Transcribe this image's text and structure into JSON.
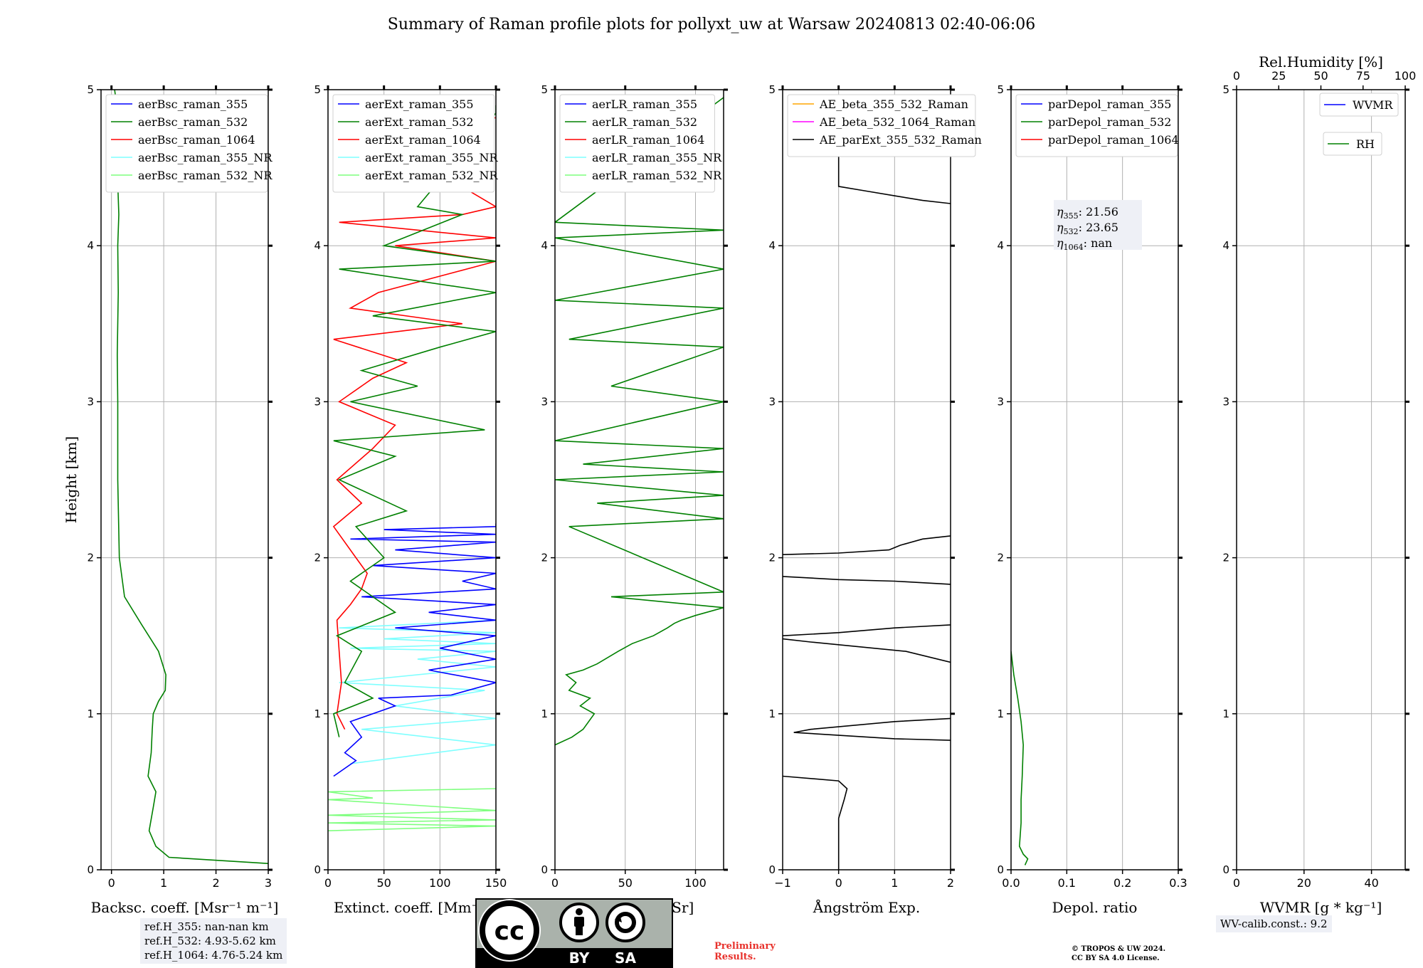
{
  "title": "Summary of Raman profile plots for pollyxt_uw at Warsaw 20240813 02:40-06:06",
  "colors": {
    "blue": "#0000ff",
    "green": "#008000",
    "red": "#ff0000",
    "cyan": "#7fffff",
    "lightgreen": "#7fff7f",
    "orange": "#ffa500",
    "magenta": "#ff00ff",
    "black": "#000000",
    "grid": "#b0b0b0",
    "info_bg": "#eef0f6",
    "preliminary": "#e8322c"
  },
  "chart_data": [
    {
      "id": "backscatter",
      "type": "line",
      "xlabel": "Backsc. coeff. [Msr⁻¹ m⁻¹]",
      "ylabel": "Height [km]",
      "xlim": [
        -0.2,
        3
      ],
      "ylim": [
        0,
        5
      ],
      "xticks": [
        "0",
        "1",
        "2",
        "3"
      ],
      "yticks": [
        "0",
        "1",
        "2",
        "3",
        "4",
        "5"
      ],
      "legend_position": "top-left",
      "legend": [
        {
          "name": "aerBsc_raman_355",
          "color": "blue"
        },
        {
          "name": "aerBsc_raman_532",
          "color": "green"
        },
        {
          "name": "aerBsc_raman_1064",
          "color": "red"
        },
        {
          "name": "aerBsc_raman_355_NR",
          "color": "cyan"
        },
        {
          "name": "aerBsc_raman_532_NR",
          "color": "lightgreen"
        }
      ],
      "series": [
        {
          "name": "aerBsc_raman_532",
          "color": "green",
          "x": [
            3.0,
            1.1,
            0.85,
            0.72,
            0.8,
            0.85,
            0.7,
            0.76,
            0.78,
            0.8,
            0.9,
            1.03,
            1.04,
            0.9,
            0.58,
            0.25,
            0.15,
            0.12,
            0.12,
            0.12,
            0.11,
            0.12,
            0.13,
            0.12,
            0.14,
            0.12,
            0.1,
            0.1,
            0.06
          ],
          "y": [
            0.04,
            0.08,
            0.15,
            0.25,
            0.4,
            0.5,
            0.6,
            0.75,
            0.9,
            1.0,
            1.08,
            1.15,
            1.25,
            1.4,
            1.57,
            1.75,
            2.0,
            2.5,
            2.8,
            3.0,
            3.3,
            3.5,
            3.7,
            4.0,
            4.2,
            4.4,
            4.6,
            4.9,
            5.0
          ]
        }
      ]
    },
    {
      "id": "extinction",
      "type": "line",
      "xlabel": "Extinct. coeff. [Mm⁻¹]",
      "ylabel": "",
      "xlim": [
        0,
        150
      ],
      "ylim": [
        0,
        5
      ],
      "xticks": [
        "0",
        "50",
        "100",
        "150"
      ],
      "yticks": [
        "0",
        "1",
        "2",
        "3",
        "4",
        "5"
      ],
      "legend_position": "top-left",
      "legend": [
        {
          "name": "aerExt_raman_355",
          "color": "blue"
        },
        {
          "name": "aerExt_raman_532",
          "color": "green"
        },
        {
          "name": "aerExt_raman_1064",
          "color": "red"
        },
        {
          "name": "aerExt_raman_355_NR",
          "color": "cyan"
        },
        {
          "name": "aerExt_raman_532_NR",
          "color": "lightgreen"
        }
      ],
      "series": [
        {
          "name": "aerExt_raman_532_NR",
          "color": "lightgreen",
          "x": [
            0,
            150,
            0,
            150,
            0,
            150,
            0,
            40,
            0,
            150
          ],
          "y": [
            0.25,
            0.28,
            0.3,
            0.32,
            0.35,
            0.38,
            0.45,
            0.46,
            0.5,
            0.52
          ]
        },
        {
          "name": "aerExt_raman_355_NR",
          "color": "cyan",
          "x": [
            20,
            150,
            30,
            150,
            60,
            140,
            10,
            150,
            80,
            150,
            20,
            150,
            50,
            150,
            10,
            150
          ],
          "y": [
            0.68,
            0.8,
            0.9,
            0.97,
            1.05,
            1.15,
            1.2,
            1.3,
            1.35,
            1.4,
            1.42,
            1.45,
            1.48,
            1.52,
            1.55,
            1.6
          ]
        },
        {
          "name": "aerExt_raman_355",
          "color": "blue",
          "x": [
            5,
            25,
            15,
            30,
            20,
            60,
            45,
            110,
            150,
            90,
            150,
            100,
            150,
            60,
            150,
            90,
            150,
            30,
            150,
            120,
            150,
            40,
            150,
            60,
            150,
            20,
            150,
            50,
            150,
            150
          ],
          "y": [
            0.6,
            0.7,
            0.75,
            0.85,
            0.95,
            1.05,
            1.1,
            1.12,
            1.2,
            1.28,
            1.35,
            1.42,
            1.5,
            1.55,
            1.6,
            1.65,
            1.7,
            1.75,
            1.8,
            1.85,
            1.9,
            1.95,
            2.0,
            2.05,
            2.1,
            2.12,
            2.15,
            2.18,
            2.2,
            2.22
          ]
        },
        {
          "name": "aerExt_raman_1064",
          "color": "red",
          "x": [
            15,
            8,
            12,
            10,
            8,
            20,
            30,
            35,
            25,
            5,
            30,
            8,
            40,
            60,
            10,
            40,
            70,
            5,
            120,
            20,
            45,
            150,
            60,
            150,
            10,
            120,
            150,
            20,
            150
          ],
          "y": [
            0.9,
            1.0,
            1.2,
            1.4,
            1.6,
            1.7,
            1.8,
            1.9,
            2.0,
            2.2,
            2.35,
            2.5,
            2.7,
            2.85,
            3.0,
            3.15,
            3.25,
            3.4,
            3.5,
            3.6,
            3.7,
            3.9,
            4.0,
            4.05,
            4.15,
            4.2,
            4.25,
            4.8,
            4.82
          ]
        },
        {
          "name": "aerExt_raman_532",
          "color": "green",
          "x": [
            10,
            5,
            40,
            15,
            30,
            8,
            60,
            20,
            50,
            25,
            70,
            10,
            60,
            5,
            140,
            20,
            80,
            30,
            100,
            150,
            40,
            150,
            10,
            150,
            50,
            120,
            80,
            150,
            150
          ],
          "y": [
            0.85,
            1.0,
            1.1,
            1.2,
            1.4,
            1.5,
            1.65,
            1.85,
            2.0,
            2.2,
            2.3,
            2.5,
            2.65,
            2.75,
            2.82,
            3.0,
            3.1,
            3.2,
            3.35,
            3.45,
            3.55,
            3.7,
            3.85,
            3.9,
            4.0,
            4.2,
            4.25,
            4.85,
            4.9
          ]
        }
      ]
    },
    {
      "id": "lidar_ratio",
      "type": "line",
      "xlabel": "Lidar ratio [Sr]",
      "ylabel": "",
      "xlim": [
        0,
        120
      ],
      "ylim": [
        0,
        5
      ],
      "xticks": [
        "0",
        "50",
        "100"
      ],
      "yticks": [
        "0",
        "1",
        "2",
        "3",
        "4",
        "5"
      ],
      "legend_position": "top-left",
      "legend": [
        {
          "name": "aerLR_raman_355",
          "color": "blue"
        },
        {
          "name": "aerLR_raman_532",
          "color": "green"
        },
        {
          "name": "aerLR_raman_1064",
          "color": "red"
        },
        {
          "name": "aerLR_raman_355_NR",
          "color": "cyan"
        },
        {
          "name": "aerLR_raman_532_NR",
          "color": "lightgreen"
        }
      ],
      "series": [
        {
          "name": "aerLR_raman_532",
          "color": "green",
          "x": [
            0,
            12,
            20,
            28,
            18,
            25,
            10,
            15,
            8,
            20,
            30,
            45,
            55,
            70,
            80,
            85,
            90,
            100,
            120,
            40,
            120,
            10,
            120,
            30,
            120,
            0,
            120,
            20,
            120,
            0,
            120,
            40,
            120,
            10,
            120,
            0,
            120,
            0,
            120,
            0,
            120
          ],
          "y": [
            0.8,
            0.85,
            0.9,
            1.0,
            1.05,
            1.1,
            1.15,
            1.2,
            1.25,
            1.28,
            1.32,
            1.4,
            1.45,
            1.5,
            1.55,
            1.58,
            1.6,
            1.63,
            1.68,
            1.75,
            1.78,
            2.2,
            2.25,
            2.35,
            2.4,
            2.5,
            2.55,
            2.6,
            2.7,
            2.75,
            3.0,
            3.1,
            3.35,
            3.4,
            3.6,
            3.65,
            3.85,
            4.05,
            4.1,
            4.15,
            4.95
          ]
        }
      ]
    },
    {
      "id": "angstrom",
      "type": "line",
      "xlabel": "Ångström Exp.",
      "ylabel": "",
      "xlim": [
        -1,
        2
      ],
      "ylim": [
        0,
        5
      ],
      "xticks": [
        "−1",
        "0",
        "1",
        "2"
      ],
      "yticks": [
        "0",
        "1",
        "2",
        "3",
        "4",
        "5"
      ],
      "legend_position": "top-left",
      "legend": [
        {
          "name": "AE_beta_355_532_Raman",
          "color": "orange"
        },
        {
          "name": "AE_beta_532_1064_Raman",
          "color": "magenta"
        },
        {
          "name": "AE_parExt_355_532_Raman",
          "color": "black"
        }
      ],
      "series": [
        {
          "name": "AE_parExt_355_532_Raman",
          "color": "black",
          "x": [
            0.0,
            0.0,
            0.1,
            0.15,
            0.0,
            -1.0
          ],
          "y": [
            0.0,
            0.33,
            0.45,
            0.52,
            0.57,
            0.6
          ]
        },
        {
          "name": "AE_parExt_355_532_Raman",
          "color": "black",
          "x": [
            2.0,
            1.0,
            -0.8,
            -0.5,
            1.0,
            2.0
          ],
          "y": [
            0.83,
            0.84,
            0.88,
            0.9,
            0.95,
            0.97
          ]
        },
        {
          "name": "AE_parExt_355_532_Raman",
          "color": "black",
          "x": [
            2.0,
            1.2,
            -0.5,
            -1.0
          ],
          "y": [
            1.33,
            1.4,
            1.46,
            1.48
          ]
        },
        {
          "name": "AE_parExt_355_532_Raman",
          "color": "black",
          "x": [
            -1.0,
            0.0,
            1.0,
            2.0
          ],
          "y": [
            1.5,
            1.52,
            1.55,
            1.57
          ]
        },
        {
          "name": "AE_parExt_355_532_Raman",
          "color": "black",
          "x": [
            -1.0,
            0.0,
            1.0,
            2.0
          ],
          "y": [
            1.88,
            1.86,
            1.85,
            1.83
          ]
        },
        {
          "name": "AE_parExt_355_532_Raman",
          "color": "black",
          "x": [
            -1.0,
            0.0,
            0.9,
            1.1,
            1.5,
            2.0
          ],
          "y": [
            2.02,
            2.03,
            2.05,
            2.08,
            2.12,
            2.14
          ]
        },
        {
          "name": "AE_parExt_355_532_Raman",
          "color": "black",
          "x": [
            0.0,
            0.0,
            0.5,
            1.0,
            1.5,
            2.0
          ],
          "y": [
            4.62,
            4.38,
            4.35,
            4.32,
            4.29,
            4.27
          ]
        },
        {
          "name": "AE_parExt_355_532_Raman",
          "color": "black",
          "x": [
            1.2,
            1.5,
            1.8,
            2.0
          ],
          "y": [
            4.68,
            4.72,
            4.75,
            4.78
          ]
        }
      ]
    },
    {
      "id": "depol",
      "type": "line",
      "xlabel": "Depol. ratio",
      "ylabel": "",
      "xlim": [
        0,
        0.3
      ],
      "ylim": [
        0,
        5
      ],
      "xticks": [
        "0.0",
        "0.1",
        "0.2",
        "0.3"
      ],
      "yticks": [
        "0",
        "1",
        "2",
        "3",
        "4",
        "5"
      ],
      "legend_position": "top-left",
      "legend": [
        {
          "name": "parDepol_raman_355",
          "color": "blue"
        },
        {
          "name": "parDepol_raman_532",
          "color": "green"
        },
        {
          "name": "parDepol_raman_1064",
          "color": "red"
        }
      ],
      "annotations": [
        {
          "symbol": "η",
          "sub": "355",
          "text": ": 21.56"
        },
        {
          "symbol": "η",
          "sub": "532",
          "text": ": 23.65"
        },
        {
          "symbol": "η",
          "sub": "1064",
          "text": ": nan"
        }
      ],
      "series": [
        {
          "name": "parDepol_raman_532",
          "color": "green",
          "x": [
            0.025,
            0.03,
            0.022,
            0.015,
            0.018,
            0.018,
            0.02,
            0.022,
            0.018,
            0.012,
            0.005,
            0.0
          ],
          "y": [
            0.03,
            0.07,
            0.1,
            0.15,
            0.3,
            0.45,
            0.6,
            0.8,
            0.95,
            1.1,
            1.25,
            1.4
          ]
        }
      ]
    },
    {
      "id": "wv",
      "type": "line",
      "xlabel": "WVMR [g * kg⁻¹]",
      "ylabel": "",
      "xlim": [
        0,
        50
      ],
      "ylim": [
        0,
        5
      ],
      "xticks": [
        "0",
        "20",
        "40"
      ],
      "xticks_values": [
        0,
        20,
        40
      ],
      "yticks": [
        "0",
        "1",
        "2",
        "3",
        "4",
        "5"
      ],
      "top_xlabel": "Rel.Humidity [%]",
      "top_xlim": [
        0,
        100
      ],
      "top_xticks": [
        "0",
        "25",
        "50",
        "75",
        "100"
      ],
      "legend_position": "top-right",
      "legend": [
        {
          "name": "WVMR",
          "color": "blue"
        },
        {
          "name": "RH",
          "color": "green"
        }
      ],
      "series": []
    }
  ],
  "info_boxes": {
    "ref_355": "ref.H_355: nan-nan km",
    "ref_532": "ref.H_532: 4.93-5.62 km",
    "ref_1064": "ref.H_1064: 4.76-5.24 km",
    "wv_calib": "WV-calib.const.: 9.2"
  },
  "license_badge": {
    "left": "BY",
    "right": "SA"
  },
  "notes": {
    "preliminary_1": "Preliminary",
    "preliminary_2": "Results.",
    "copyright_1": "© TROPOS & UW 2024.",
    "copyright_2": "CC BY SA 4.0 License."
  }
}
